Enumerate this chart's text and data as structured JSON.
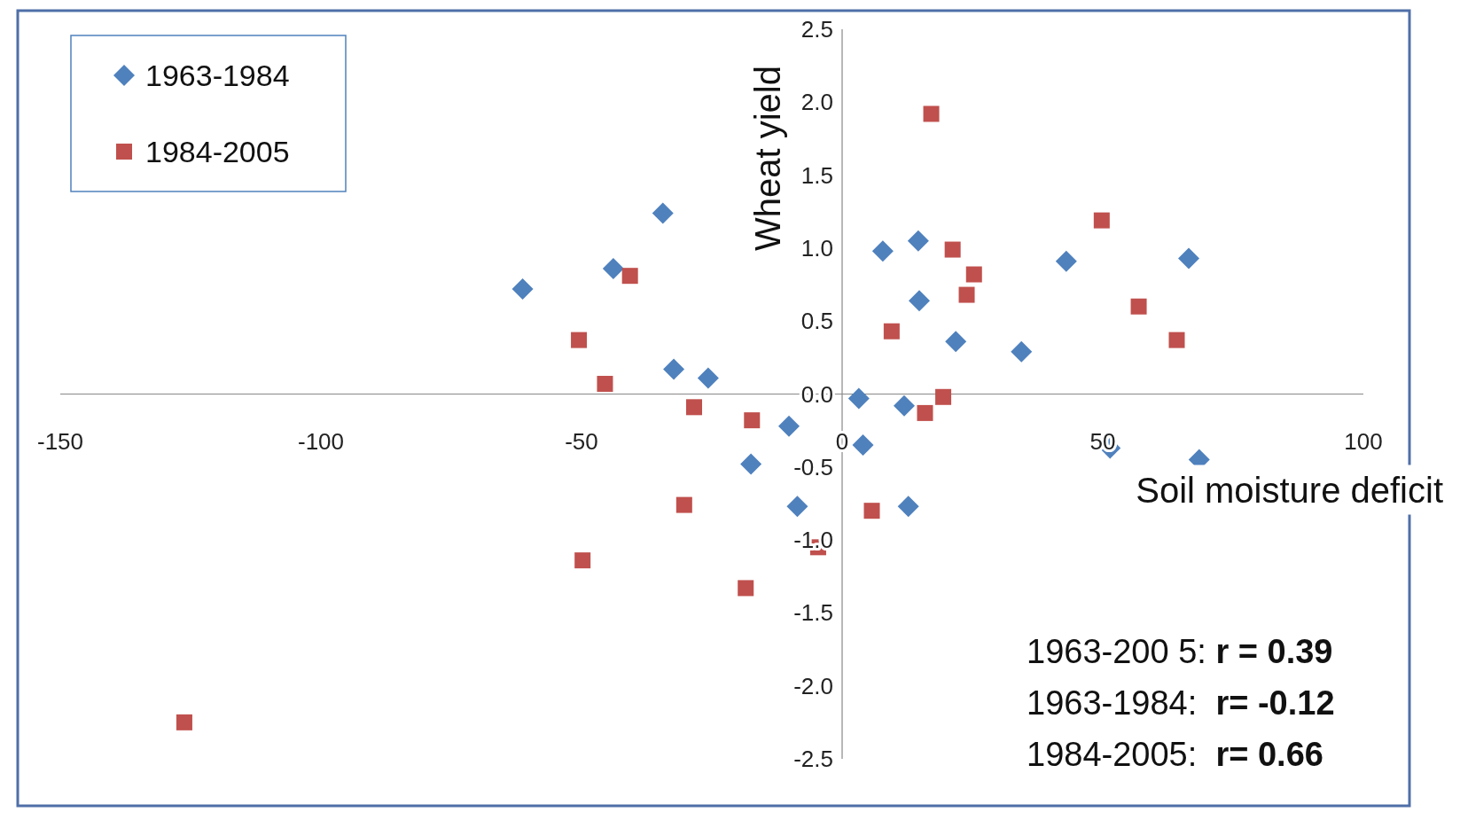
{
  "chart_data": {
    "type": "scatter",
    "xlabel": "Soil moisture deficit",
    "ylabel": "Wheat  yield",
    "xlim": [
      -150,
      100
    ],
    "ylim": [
      -2.5,
      2.5
    ],
    "xticks": [
      -150,
      -100,
      -50,
      0,
      50,
      100
    ],
    "yticks": [
      {
        "value": -2.5,
        "label": "-2.5"
      },
      {
        "value": -2,
        "label": "-2.0"
      },
      {
        "value": -1.5,
        "label": "-1.5"
      },
      {
        "value": -1,
        "label": "-1.0"
      },
      {
        "value": -0.5,
        "label": "-0.5"
      },
      {
        "value": 0,
        "label": "0.0"
      },
      {
        "value": 0.5,
        "label": "0.5"
      },
      {
        "value": 1,
        "label": "1.0"
      },
      {
        "value": 1.5,
        "label": "1.5"
      },
      {
        "value": 2,
        "label": "2.0"
      },
      {
        "value": 2.5,
        "label": "2.5"
      }
    ],
    "grid": false,
    "legend": "top left",
    "series": [
      {
        "name": "1963-1984",
        "color": "#4f81bd",
        "marker": "diamond",
        "x": [
          -61.3,
          -43.9,
          -34.4,
          -32.3,
          -25.7,
          -17.5,
          -10.2,
          -8.6,
          3.2,
          4.0,
          7.8,
          11.9,
          12.7,
          14.6,
          14.8,
          21.8,
          34.4,
          43.0,
          51.4,
          66.5,
          68.5
        ],
        "values": [
          0.72,
          0.86,
          1.24,
          0.17,
          0.11,
          -0.48,
          -0.22,
          -0.77,
          -0.03,
          -0.35,
          0.98,
          -0.08,
          -0.77,
          1.05,
          0.64,
          0.36,
          0.29,
          0.91,
          -0.37,
          0.93,
          -0.45
        ]
      },
      {
        "name": "1984-2005",
        "color": "#c0504d",
        "marker": "square",
        "x": [
          -126.2,
          -50.5,
          -49.8,
          -45.5,
          -40.7,
          -30.3,
          -28.4,
          -18.5,
          -17.3,
          -4.6,
          5.7,
          9.5,
          15.9,
          17.1,
          19.4,
          21.2,
          23.9,
          25.3,
          49.8,
          56.9,
          64.2
        ],
        "values": [
          -2.25,
          0.37,
          -1.14,
          0.07,
          0.81,
          -0.76,
          -0.09,
          -1.33,
          -0.18,
          -1.05,
          -0.8,
          0.43,
          -0.13,
          1.92,
          -0.02,
          0.99,
          0.68,
          0.82,
          1.19,
          0.6,
          0.37
        ]
      }
    ],
    "annotations": [
      "1963-200 5: r = 0.39",
      "1963-1984:  r= -0.12",
      "1984-2005:  r= 0.66"
    ]
  }
}
